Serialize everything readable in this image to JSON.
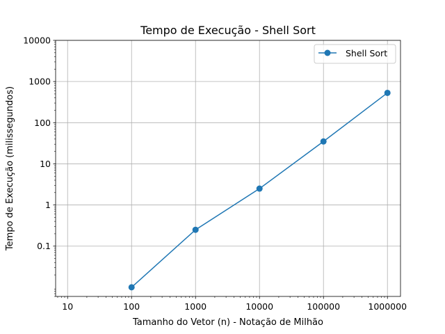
{
  "chart_data": {
    "type": "line",
    "title": "Tempo de Execução - Shell Sort",
    "xlabel": "Tamanho do Vetor (n) - Notação de Milhão",
    "ylabel": "Tempo de Execução (milissegundos)",
    "xscale": "log",
    "yscale": "log",
    "xlim": [
      6.5,
      1600000
    ],
    "ylim": [
      0.006,
      10000
    ],
    "x_ticks": [
      10,
      100,
      1000,
      10000,
      100000,
      1000000
    ],
    "x_tick_labels": [
      "10",
      "100",
      "1000",
      "10000",
      "100000",
      "1000000"
    ],
    "y_ticks": [
      0.1,
      1,
      10,
      100,
      1000,
      10000
    ],
    "y_tick_labels": [
      "0.1",
      "1",
      "10",
      "100",
      "1000",
      "10000"
    ],
    "grid": true,
    "legend_position": "top-right",
    "series": [
      {
        "name": "Shell Sort",
        "color": "#1f77b4",
        "marker": "circle",
        "x": [
          100,
          1000,
          10000,
          100000,
          1000000
        ],
        "y": [
          0.01,
          0.25,
          2.5,
          35,
          530
        ]
      }
    ]
  }
}
